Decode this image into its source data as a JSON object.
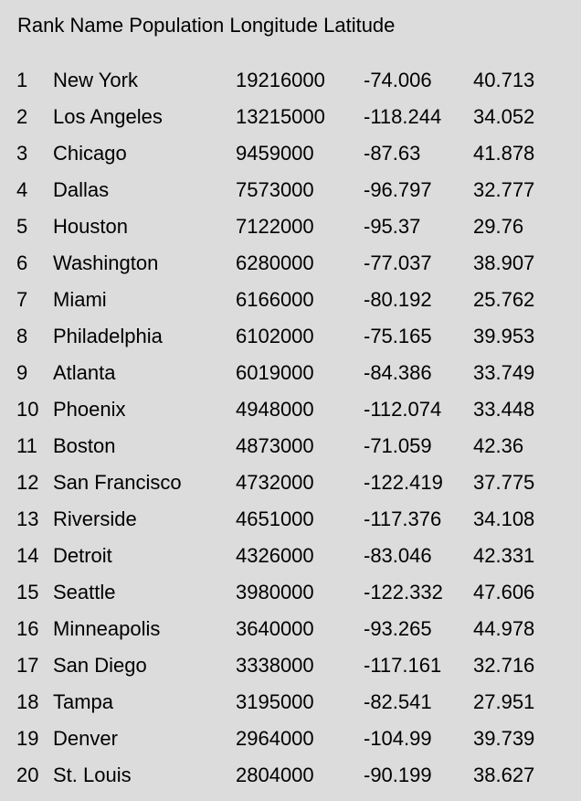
{
  "table": {
    "header": "Rank Name Population Longitude Latitude",
    "rows": [
      {
        "rank": "1",
        "name": "New York",
        "population": "19216000",
        "longitude": "-74.006",
        "latitude": "40.713"
      },
      {
        "rank": "2",
        "name": "Los Angeles",
        "population": "13215000",
        "longitude": "-118.244",
        "latitude": "34.052"
      },
      {
        "rank": "3",
        "name": "Chicago",
        "population": "9459000",
        "longitude": "-87.63",
        "latitude": "41.878"
      },
      {
        "rank": "4",
        "name": "Dallas",
        "population": "7573000",
        "longitude": "-96.797",
        "latitude": "32.777"
      },
      {
        "rank": "5",
        "name": "Houston",
        "population": "7122000",
        "longitude": "-95.37",
        "latitude": "29.76"
      },
      {
        "rank": "6",
        "name": "Washington",
        "population": "6280000",
        "longitude": "-77.037",
        "latitude": "38.907"
      },
      {
        "rank": "7",
        "name": "Miami",
        "population": "6166000",
        "longitude": "-80.192",
        "latitude": "25.762"
      },
      {
        "rank": "8",
        "name": "Philadelphia",
        "population": "6102000",
        "longitude": "-75.165",
        "latitude": "39.953"
      },
      {
        "rank": "9",
        "name": "Atlanta",
        "population": "6019000",
        "longitude": "-84.386",
        "latitude": "33.749"
      },
      {
        "rank": "10",
        "name": "Phoenix",
        "population": "4948000",
        "longitude": "-112.074",
        "latitude": "33.448"
      },
      {
        "rank": "11",
        "name": "Boston",
        "population": "4873000",
        "longitude": "-71.059",
        "latitude": "42.36"
      },
      {
        "rank": "12",
        "name": "San Francisco",
        "population": "4732000",
        "longitude": "-122.419",
        "latitude": "37.775"
      },
      {
        "rank": "13",
        "name": "Riverside",
        "population": "4651000",
        "longitude": "-117.376",
        "latitude": "34.108"
      },
      {
        "rank": "14",
        "name": "Detroit",
        "population": "4326000",
        "longitude": "-83.046",
        "latitude": "42.331"
      },
      {
        "rank": "15",
        "name": "Seattle",
        "population": "3980000",
        "longitude": "-122.332",
        "latitude": "47.606"
      },
      {
        "rank": "16",
        "name": "Minneapolis",
        "population": "3640000",
        "longitude": "-93.265",
        "latitude": "44.978"
      },
      {
        "rank": "17",
        "name": "San Diego",
        "population": "3338000",
        "longitude": "-117.161",
        "latitude": "32.716"
      },
      {
        "rank": "18",
        "name": "Tampa",
        "population": "3195000",
        "longitude": "-82.541",
        "latitude": "27.951"
      },
      {
        "rank": "19",
        "name": "Denver",
        "population": "2964000",
        "longitude": "-104.99",
        "latitude": "39.739"
      },
      {
        "rank": "20",
        "name": "St. Louis",
        "population": "2804000",
        "longitude": "-90.199",
        "latitude": "38.627"
      }
    ]
  }
}
